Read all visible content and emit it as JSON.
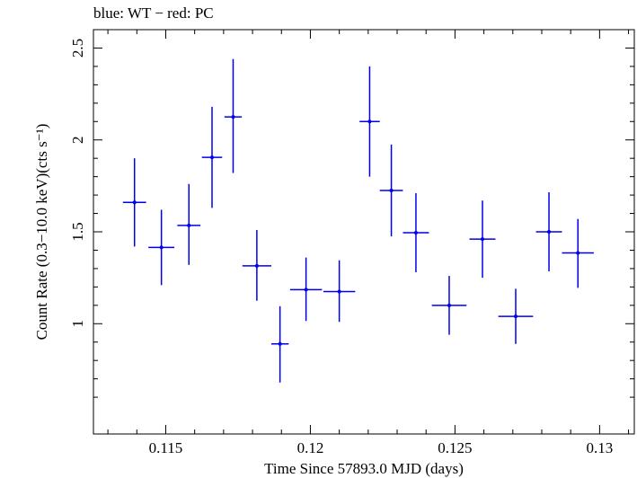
{
  "chart_data": {
    "type": "scatter",
    "title": "blue: WT − red: PC",
    "xlabel": "Time Since 57893.0 MJD (days)",
    "ylabel": "Count Rate (0.3−10.0 keV)(cts s⁻¹)",
    "xlim": [
      0.1125,
      0.1312
    ],
    "ylim": [
      0.4,
      2.6
    ],
    "x_ticks": [
      {
        "value": 0.115,
        "label": "0.115"
      },
      {
        "value": 0.12,
        "label": "0.12"
      },
      {
        "value": 0.125,
        "label": "0.125"
      },
      {
        "value": 0.13,
        "label": "0.13"
      }
    ],
    "y_ticks": [
      {
        "value": 1,
        "label": "1"
      },
      {
        "value": 1.5,
        "label": "1.5"
      },
      {
        "value": 2,
        "label": "2"
      },
      {
        "value": 2.5,
        "label": "2.5"
      }
    ],
    "grid": false,
    "series": [
      {
        "color": "#0000ee",
        "points": [
          {
            "x": 0.11392,
            "y": 1.66,
            "xerr": 0.0004,
            "yerr_lo": 0.24,
            "yerr_hi": 0.24
          },
          {
            "x": 0.11485,
            "y": 1.415,
            "xerr": 0.00045,
            "yerr_lo": 0.205,
            "yerr_hi": 0.205
          },
          {
            "x": 0.1158,
            "y": 1.535,
            "xerr": 0.0004,
            "yerr_lo": 0.215,
            "yerr_hi": 0.225
          },
          {
            "x": 0.1166,
            "y": 1.905,
            "xerr": 0.00035,
            "yerr_lo": 0.275,
            "yerr_hi": 0.275
          },
          {
            "x": 0.11733,
            "y": 2.125,
            "xerr": 0.0003,
            "yerr_lo": 0.305,
            "yerr_hi": 0.315
          },
          {
            "x": 0.11815,
            "y": 1.315,
            "xerr": 0.0005,
            "yerr_lo": 0.19,
            "yerr_hi": 0.195
          },
          {
            "x": 0.11895,
            "y": 0.89,
            "xerr": 0.0003,
            "yerr_lo": 0.21,
            "yerr_hi": 0.205
          },
          {
            "x": 0.11985,
            "y": 1.185,
            "xerr": 0.00055,
            "yerr_lo": 0.17,
            "yerr_hi": 0.175
          },
          {
            "x": 0.121,
            "y": 1.175,
            "xerr": 0.00055,
            "yerr_lo": 0.165,
            "yerr_hi": 0.17
          },
          {
            "x": 0.12205,
            "y": 2.1,
            "xerr": 0.00035,
            "yerr_lo": 0.3,
            "yerr_hi": 0.3
          },
          {
            "x": 0.1228,
            "y": 1.725,
            "xerr": 0.0004,
            "yerr_lo": 0.25,
            "yerr_hi": 0.25
          },
          {
            "x": 0.12365,
            "y": 1.495,
            "xerr": 0.00045,
            "yerr_lo": 0.215,
            "yerr_hi": 0.215
          },
          {
            "x": 0.1248,
            "y": 1.1,
            "xerr": 0.0006,
            "yerr_lo": 0.16,
            "yerr_hi": 0.16
          },
          {
            "x": 0.12595,
            "y": 1.46,
            "xerr": 0.00045,
            "yerr_lo": 0.21,
            "yerr_hi": 0.21
          },
          {
            "x": 0.1271,
            "y": 1.04,
            "xerr": 0.0006,
            "yerr_lo": 0.15,
            "yerr_hi": 0.15
          },
          {
            "x": 0.12825,
            "y": 1.5,
            "xerr": 0.00045,
            "yerr_lo": 0.215,
            "yerr_hi": 0.215
          },
          {
            "x": 0.12925,
            "y": 1.385,
            "xerr": 0.00055,
            "yerr_lo": 0.19,
            "yerr_hi": 0.185
          }
        ]
      }
    ]
  }
}
